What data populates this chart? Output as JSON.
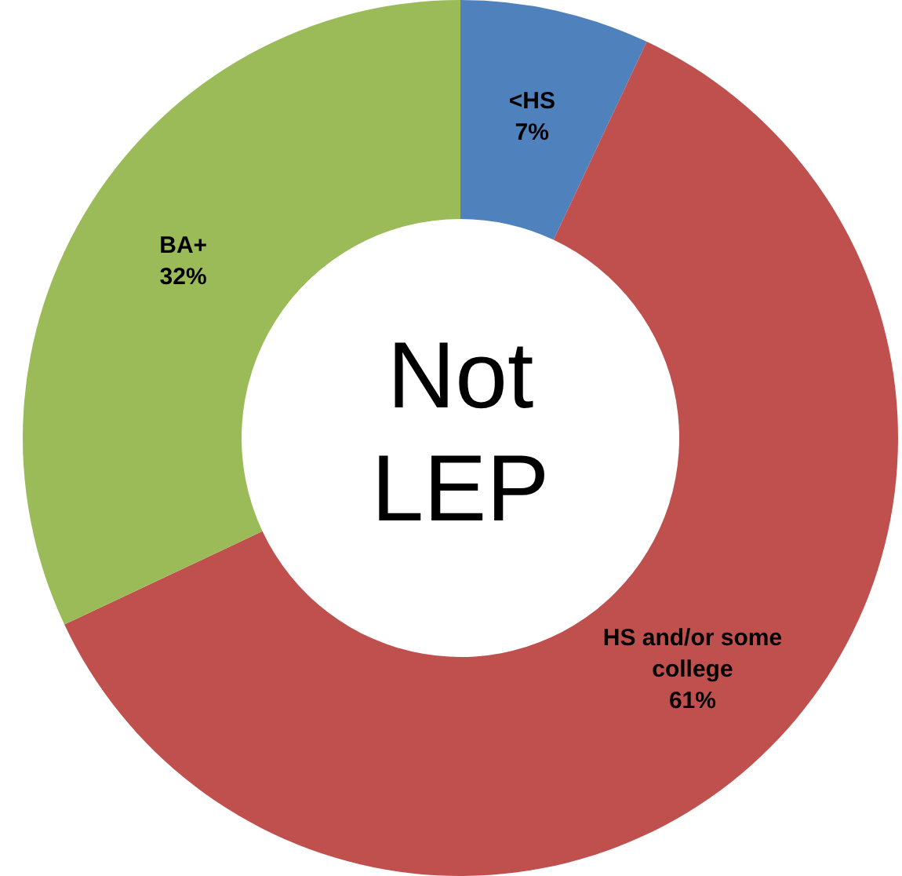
{
  "chart_data": {
    "type": "donut",
    "title": "Not LEP",
    "categories": [
      "<HS",
      "HS and/or some college",
      "BA+"
    ],
    "values": [
      7,
      61,
      32
    ],
    "value_labels": [
      "7%",
      "61%",
      "32%"
    ],
    "colors": [
      "#4f81bd",
      "#c0504d",
      "#9bbb59"
    ],
    "legend": false
  }
}
